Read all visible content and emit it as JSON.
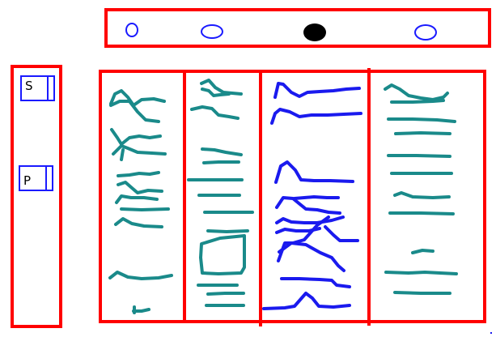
{
  "top_bar": {
    "indicators": [
      {
        "name": "indicator-1",
        "filled": false
      },
      {
        "name": "indicator-2",
        "filled": false
      },
      {
        "name": "indicator-3",
        "filled": true
      },
      {
        "name": "indicator-4",
        "filled": false
      }
    ]
  },
  "left_panel": {
    "buttons": [
      {
        "label": "S"
      },
      {
        "label": "P"
      }
    ]
  },
  "board": {
    "columns": 4
  },
  "colors": {
    "frame": "#ff0000",
    "outline": "#1a1aff",
    "teal_scribble": "#1a8a8a",
    "blue_scribble": "#1a1aee",
    "filled_indicator": "#000000"
  }
}
